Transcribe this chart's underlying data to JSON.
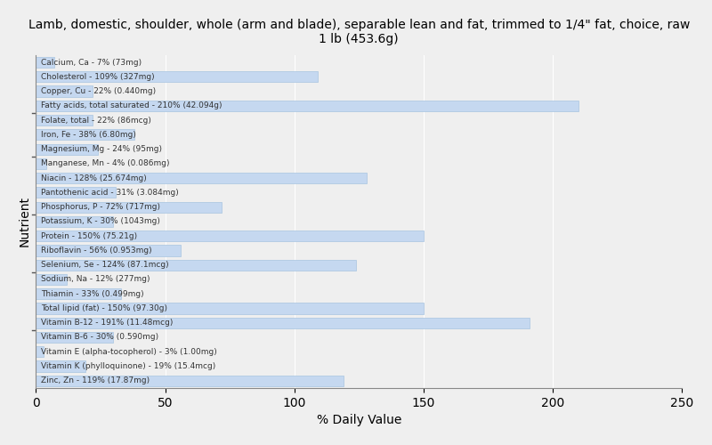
{
  "title": "Lamb, domestic, shoulder, whole (arm and blade), separable lean and fat, trimmed to 1/4\" fat, choice, raw\n1 lb (453.6g)",
  "xlabel": "% Daily Value",
  "ylabel": "Nutrient",
  "xlim": [
    0,
    250
  ],
  "xticks": [
    0,
    50,
    100,
    150,
    200,
    250
  ],
  "background_color": "#efefef",
  "bar_color": "#c5d8f0",
  "bar_edge_color": "#a8c4e0",
  "nutrients": [
    {
      "label": "Calcium, Ca - 7% (73mg)",
      "value": 7
    },
    {
      "label": "Cholesterol - 109% (327mg)",
      "value": 109
    },
    {
      "label": "Copper, Cu - 22% (0.440mg)",
      "value": 22
    },
    {
      "label": "Fatty acids, total saturated - 210% (42.094g)",
      "value": 210
    },
    {
      "label": "Folate, total - 22% (86mcg)",
      "value": 22
    },
    {
      "label": "Iron, Fe - 38% (6.80mg)",
      "value": 38
    },
    {
      "label": "Magnesium, Mg - 24% (95mg)",
      "value": 24
    },
    {
      "label": "Manganese, Mn - 4% (0.086mg)",
      "value": 4
    },
    {
      "label": "Niacin - 128% (25.674mg)",
      "value": 128
    },
    {
      "label": "Pantothenic acid - 31% (3.084mg)",
      "value": 31
    },
    {
      "label": "Phosphorus, P - 72% (717mg)",
      "value": 72
    },
    {
      "label": "Potassium, K - 30% (1043mg)",
      "value": 30
    },
    {
      "label": "Protein - 150% (75.21g)",
      "value": 150
    },
    {
      "label": "Riboflavin - 56% (0.953mg)",
      "value": 56
    },
    {
      "label": "Selenium, Se - 124% (87.1mcg)",
      "value": 124
    },
    {
      "label": "Sodium, Na - 12% (277mg)",
      "value": 12
    },
    {
      "label": "Thiamin - 33% (0.499mg)",
      "value": 33
    },
    {
      "label": "Total lipid (fat) - 150% (97.30g)",
      "value": 150
    },
    {
      "label": "Vitamin B-12 - 191% (11.48mcg)",
      "value": 191
    },
    {
      "label": "Vitamin B-6 - 30% (0.590mg)",
      "value": 30
    },
    {
      "label": "Vitamin E (alpha-tocopherol) - 3% (1.00mg)",
      "value": 3
    },
    {
      "label": "Vitamin K (phylloquinone) - 19% (15.4mcg)",
      "value": 19
    },
    {
      "label": "Zinc, Zn - 119% (17.87mg)",
      "value": 119
    }
  ],
  "group_separators": [
    3.5,
    7.5,
    11.5,
    15.5,
    18.5
  ]
}
